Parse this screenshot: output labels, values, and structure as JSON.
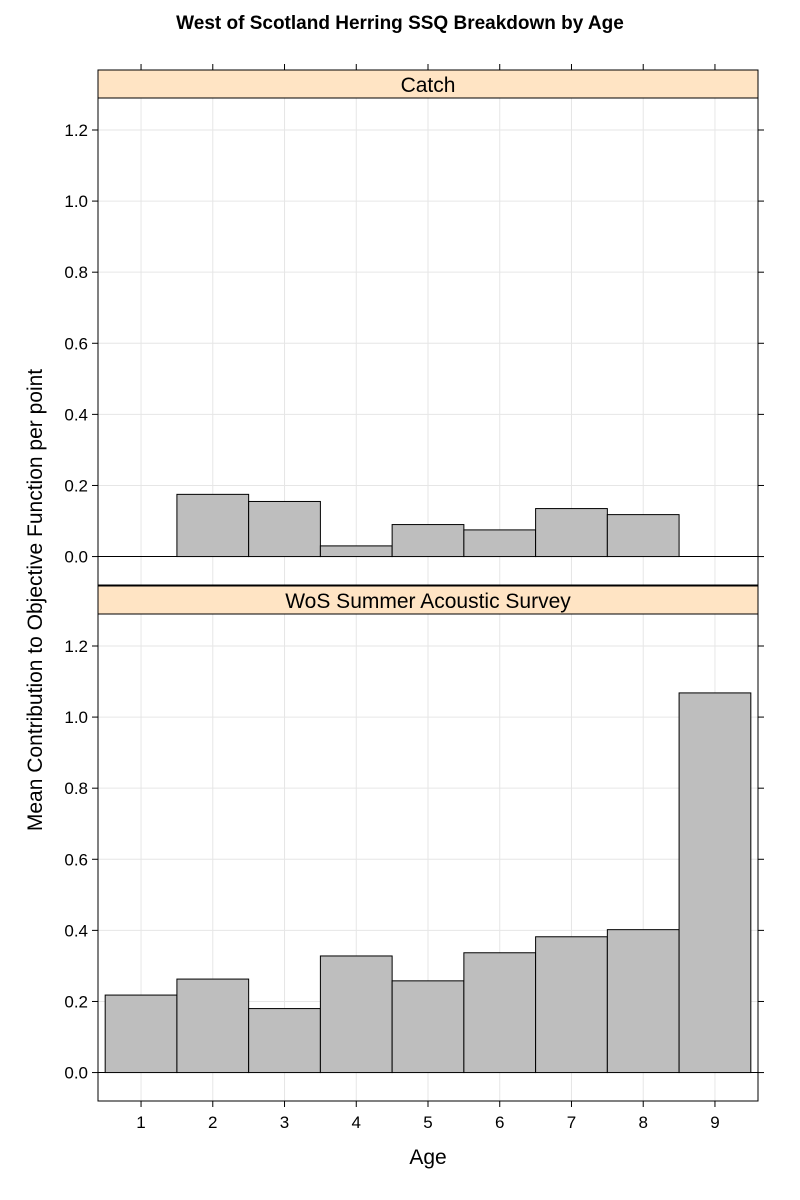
{
  "chart_data": {
    "type": "bar",
    "title": "West of Scotland Herring SSQ Breakdown by Age",
    "xlabel": "Age",
    "ylabel": "Mean Contribution to Objective Function per point",
    "ylim": [
      -0.08,
      1.29
    ],
    "yticks": [
      0.0,
      0.2,
      0.4,
      0.6,
      0.8,
      1.0,
      1.2
    ],
    "categories": [
      "1",
      "2",
      "3",
      "4",
      "5",
      "6",
      "7",
      "8",
      "9"
    ],
    "grid": true,
    "panels": [
      {
        "name": "Catch",
        "values": [
          null,
          0.175,
          0.155,
          0.03,
          0.09,
          0.075,
          0.135,
          0.118,
          null
        ]
      },
      {
        "name": "WoS Summer Acoustic Survey",
        "values": [
          0.218,
          0.263,
          0.18,
          0.328,
          0.258,
          0.337,
          0.382,
          0.402,
          1.068
        ]
      }
    ],
    "colors": {
      "bar_fill": "#bebebe",
      "bar_stroke": "#000000",
      "strip_fill": "#ffe4c4",
      "grid": "#e6e6e6",
      "frame": "#000000"
    }
  }
}
